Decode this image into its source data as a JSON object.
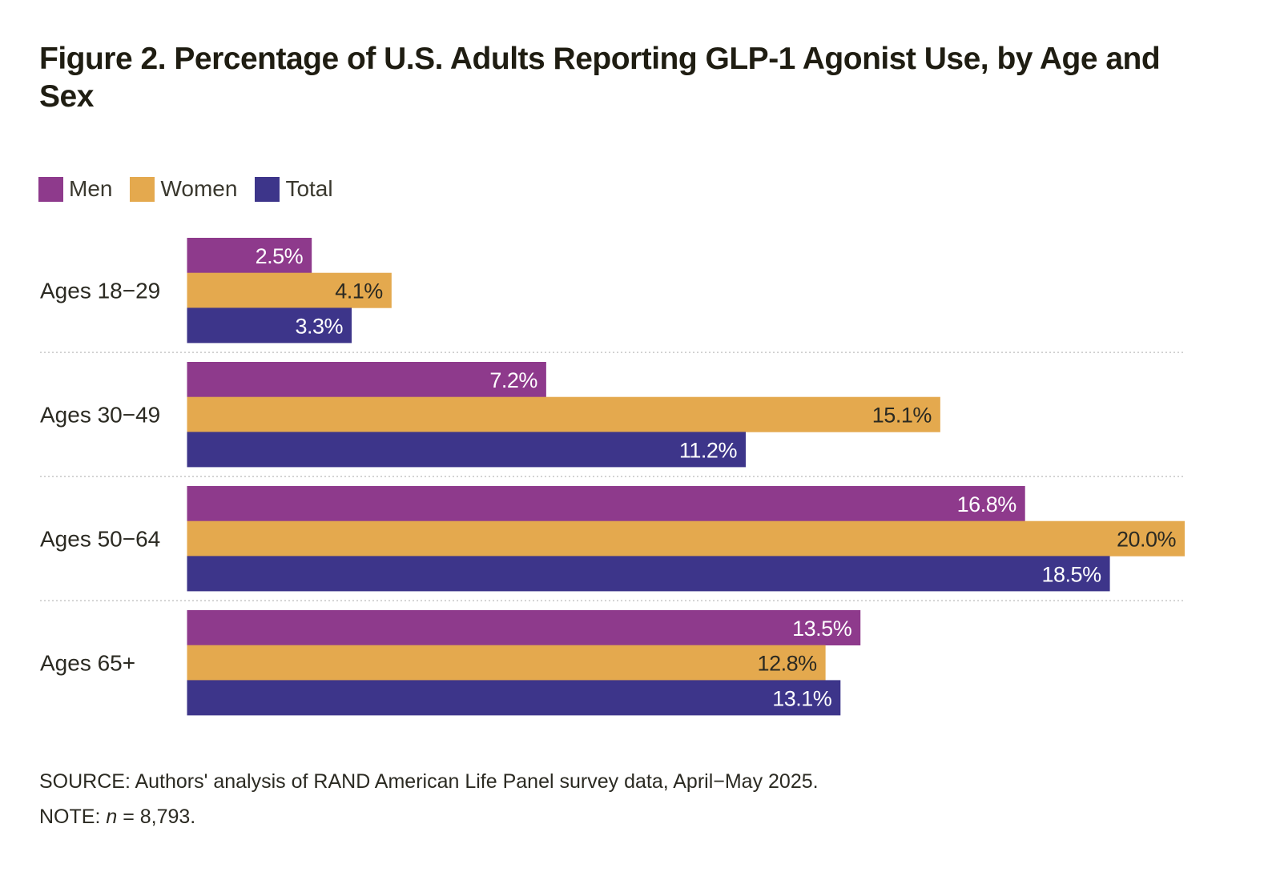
{
  "title_prefix": "Figure 2.",
  "title_rest": "Percentage of U.S. Adults Reporting GLP-1 Agonist Use, by Age and Sex",
  "colors": {
    "Men": "#8e3a8c",
    "Women": "#e4a94e",
    "Total": "#3d358a",
    "label_dark": "#2b2a22",
    "label_light": "#ffffff",
    "divider": "#c8c8c8"
  },
  "chart_data": {
    "type": "bar",
    "orientation": "horizontal",
    "title": "Figure 2. Percentage of U.S. Adults Reporting GLP-1 Agonist Use, by Age and Sex",
    "categories": [
      "Ages 18−29",
      "Ages 30−49",
      "Ages 50−64",
      "Ages 65+"
    ],
    "series": [
      {
        "name": "Men",
        "values": [
          2.5,
          7.2,
          16.8,
          13.5
        ],
        "labels": [
          "2.5%",
          "7.2%",
          "16.8%",
          "13.5%"
        ]
      },
      {
        "name": "Women",
        "values": [
          4.1,
          15.1,
          20.0,
          12.8
        ],
        "labels": [
          "4.1%",
          "15.1%",
          "20.0%",
          "12.8%"
        ]
      },
      {
        "name": "Total",
        "values": [
          3.3,
          11.2,
          18.5,
          13.1
        ],
        "labels": [
          "3.3%",
          "11.2%",
          "18.5%",
          "13.1%"
        ]
      }
    ],
    "xlabel": "",
    "ylabel": "",
    "xlim": [
      0,
      20
    ],
    "grid": false,
    "legend": "top-left",
    "data_labels": "inside-end"
  },
  "legend": [
    {
      "name": "Men"
    },
    {
      "name": "Women"
    },
    {
      "name": "Total"
    }
  ],
  "source": "SOURCE: Authors' analysis of RAND American Life Panel survey data, April−May 2025.",
  "note_prefix": "NOTE: ",
  "note_var": "n",
  "note_rest": " = 8,793."
}
